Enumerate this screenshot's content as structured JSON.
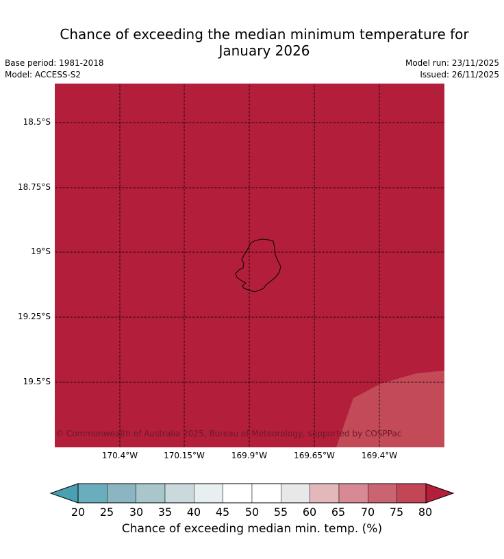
{
  "title_line1": "Chance of exceeding the median minimum temperature for",
  "title_line2": "January 2026",
  "left_meta": {
    "base_period": "Base period: 1981-2018",
    "model": "Model: ACCESS-S2"
  },
  "right_meta": {
    "model_run": "Model run: 23/11/2025",
    "issued": "Issued: 26/11/2025"
  },
  "map": {
    "fill_color": "#b31e3a",
    "secondary_fill_color": "#c34a57",
    "dominant_category": "80+",
    "secondary_category": "75-80",
    "latitude_labels": [
      "18.5°S",
      "18.75°S",
      "19°S",
      "19.25°S",
      "19.5°S"
    ],
    "longitude_labels": [
      "170.4°W",
      "170.15°W",
      "169.9°W",
      "169.65°W",
      "169.4°W"
    ],
    "copyright": "© Commonwealth of Australia 2025, Bureau of Meteorology, supported by COSPPac"
  },
  "colorbar": {
    "ticks": [
      "20",
      "25",
      "30",
      "35",
      "40",
      "45",
      "50",
      "55",
      "60",
      "65",
      "70",
      "75",
      "80"
    ],
    "colors": [
      "#4aa0b3",
      "#6aaebd",
      "#8ab5c1",
      "#a9c7cb",
      "#c9d9dc",
      "#e8eff1",
      "#ffffff",
      "#ffffff",
      "#e9e8e9",
      "#e2b8bb",
      "#d88a94",
      "#cb6472",
      "#c24655",
      "#b31e3a"
    ],
    "label": "Chance of exceeding median min. temp. (%)"
  }
}
